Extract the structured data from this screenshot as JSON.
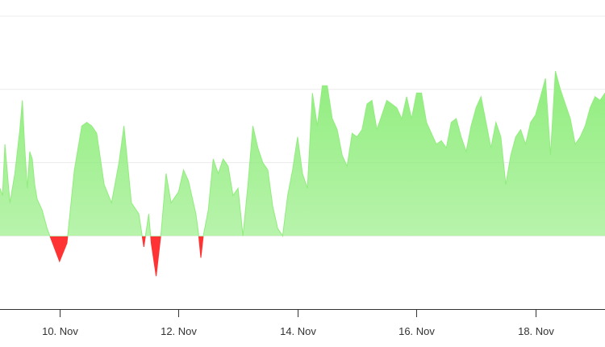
{
  "chart_data": {
    "type": "area",
    "title": "",
    "xlabel": "",
    "ylabel": "",
    "x_tick_labels": [
      "10. Nov",
      "12. Nov",
      "14. Nov",
      "16. Nov",
      "18. Nov"
    ],
    "x_tick_dates": [
      "2024-11-10",
      "2024-11-12",
      "2024-11-14",
      "2024-11-16",
      "2024-11-18"
    ],
    "x_range": [
      "2024-11-09T00:00",
      "2024-11-19T04:00"
    ],
    "y_range": [
      -1,
      3
    ],
    "y_gridlines": [
      0,
      1,
      2,
      3
    ],
    "y_tick_labels_visible": false,
    "positive_color": "#90ed7d",
    "negative_color": "#ff3333",
    "series": [
      {
        "points": [
          [
            "2024-11-09T00:00",
            0.65
          ],
          [
            "2024-11-09T01:00",
            0.55
          ],
          [
            "2024-11-09T02:00",
            1.25
          ],
          [
            "2024-11-09T03:00",
            0.85
          ],
          [
            "2024-11-09T04:00",
            0.45
          ],
          [
            "2024-11-09T06:00",
            0.85
          ],
          [
            "2024-11-09T08:00",
            1.45
          ],
          [
            "2024-11-09T09:00",
            1.85
          ],
          [
            "2024-11-09T10:00",
            1.2
          ],
          [
            "2024-11-09T11:00",
            0.65
          ],
          [
            "2024-11-09T12:00",
            1.15
          ],
          [
            "2024-11-09T13:00",
            1.05
          ],
          [
            "2024-11-09T14:00",
            0.7
          ],
          [
            "2024-11-09T15:00",
            0.5
          ],
          [
            "2024-11-09T17:00",
            0.35
          ],
          [
            "2024-11-09T19:00",
            0.1
          ],
          [
            "2024-11-10T00:00",
            -0.35
          ],
          [
            "2024-11-10T03:00",
            -0.1
          ],
          [
            "2024-11-10T06:00",
            0.9
          ],
          [
            "2024-11-10T09:00",
            1.5
          ],
          [
            "2024-11-10T11:00",
            1.55
          ],
          [
            "2024-11-10T13:00",
            1.5
          ],
          [
            "2024-11-10T15:00",
            1.4
          ],
          [
            "2024-11-10T18:00",
            0.7
          ],
          [
            "2024-11-10T21:00",
            0.45
          ],
          [
            "2024-11-11T00:00",
            1.0
          ],
          [
            "2024-11-11T02:00",
            1.5
          ],
          [
            "2024-11-11T05:00",
            0.45
          ],
          [
            "2024-11-11T08:00",
            0.3
          ],
          [
            "2024-11-11T10:00",
            -0.15
          ],
          [
            "2024-11-11T12:00",
            0.3
          ],
          [
            "2024-11-11T13:00",
            -0.1
          ],
          [
            "2024-11-11T15:00",
            -0.55
          ],
          [
            "2024-11-11T17:00",
            0.05
          ],
          [
            "2024-11-11T19:00",
            0.85
          ],
          [
            "2024-11-11T21:00",
            0.45
          ],
          [
            "2024-11-12T00:00",
            0.6
          ],
          [
            "2024-11-12T02:00",
            0.9
          ],
          [
            "2024-11-12T04:00",
            0.75
          ],
          [
            "2024-11-12T05:00",
            0.6
          ],
          [
            "2024-11-12T07:00",
            0.3
          ],
          [
            "2024-11-12T08:00",
            0.05
          ],
          [
            "2024-11-12T09:00",
            -0.3
          ],
          [
            "2024-11-12T10:00",
            0.0
          ],
          [
            "2024-11-12T12:00",
            0.35
          ],
          [
            "2024-11-12T14:00",
            1.05
          ],
          [
            "2024-11-12T16:00",
            0.85
          ],
          [
            "2024-11-12T18:00",
            1.05
          ],
          [
            "2024-11-12T20:00",
            0.95
          ],
          [
            "2024-11-12T22:00",
            0.55
          ],
          [
            "2024-11-13T00:00",
            0.65
          ],
          [
            "2024-11-13T02:00",
            0.0
          ],
          [
            "2024-11-13T04:00",
            0.7
          ],
          [
            "2024-11-13T06:00",
            1.5
          ],
          [
            "2024-11-13T08:00",
            1.2
          ],
          [
            "2024-11-13T10:00",
            1.0
          ],
          [
            "2024-11-13T12:00",
            0.9
          ],
          [
            "2024-11-13T14:00",
            0.4
          ],
          [
            "2024-11-13T16:00",
            0.1
          ],
          [
            "2024-11-13T18:00",
            0.0
          ],
          [
            "2024-11-13T20:00",
            0.55
          ],
          [
            "2024-11-13T22:00",
            0.9
          ],
          [
            "2024-11-14T00:00",
            1.35
          ],
          [
            "2024-11-14T02:00",
            0.85
          ],
          [
            "2024-11-14T04:00",
            0.65
          ],
          [
            "2024-11-14T06:00",
            1.95
          ],
          [
            "2024-11-14T08:00",
            1.5
          ],
          [
            "2024-11-14T10:00",
            2.05
          ],
          [
            "2024-11-14T12:00",
            2.05
          ],
          [
            "2024-11-14T14:00",
            1.6
          ],
          [
            "2024-11-14T16:00",
            1.45
          ],
          [
            "2024-11-14T18:00",
            1.1
          ],
          [
            "2024-11-14T20:00",
            0.95
          ],
          [
            "2024-11-14T22:00",
            1.4
          ],
          [
            "2024-11-15T00:00",
            1.35
          ],
          [
            "2024-11-15T02:00",
            1.45
          ],
          [
            "2024-11-15T04:00",
            1.8
          ],
          [
            "2024-11-15T06:00",
            1.85
          ],
          [
            "2024-11-15T08:00",
            1.45
          ],
          [
            "2024-11-15T10:00",
            1.65
          ],
          [
            "2024-11-15T12:00",
            1.85
          ],
          [
            "2024-11-15T14:00",
            1.8
          ],
          [
            "2024-11-15T16:00",
            1.75
          ],
          [
            "2024-11-15T18:00",
            1.6
          ],
          [
            "2024-11-15T20:00",
            1.9
          ],
          [
            "2024-11-15T22:00",
            1.6
          ],
          [
            "2024-11-16T00:00",
            1.95
          ],
          [
            "2024-11-16T02:00",
            1.95
          ],
          [
            "2024-11-16T04:00",
            1.55
          ],
          [
            "2024-11-16T06:00",
            1.4
          ],
          [
            "2024-11-16T08:00",
            1.25
          ],
          [
            "2024-11-16T10:00",
            1.3
          ],
          [
            "2024-11-16T12:00",
            1.2
          ],
          [
            "2024-11-16T14:00",
            1.55
          ],
          [
            "2024-11-16T16:00",
            1.6
          ],
          [
            "2024-11-16T18:00",
            1.35
          ],
          [
            "2024-11-16T20:00",
            1.15
          ],
          [
            "2024-11-16T22:00",
            1.5
          ],
          [
            "2024-11-17T00:00",
            1.75
          ],
          [
            "2024-11-17T02:00",
            1.9
          ],
          [
            "2024-11-17T04:00",
            1.55
          ],
          [
            "2024-11-17T06:00",
            1.2
          ],
          [
            "2024-11-17T08:00",
            1.55
          ],
          [
            "2024-11-17T10:00",
            1.35
          ],
          [
            "2024-11-17T12:00",
            0.7
          ],
          [
            "2024-11-17T14:00",
            1.1
          ],
          [
            "2024-11-17T16:00",
            1.35
          ],
          [
            "2024-11-17T18:00",
            1.45
          ],
          [
            "2024-11-17T20:00",
            1.25
          ],
          [
            "2024-11-17T22:00",
            1.55
          ],
          [
            "2024-11-18T00:00",
            1.65
          ],
          [
            "2024-11-18T02:00",
            1.9
          ],
          [
            "2024-11-18T04:00",
            2.15
          ],
          [
            "2024-11-18T06:00",
            1.1
          ],
          [
            "2024-11-18T08:00",
            2.25
          ],
          [
            "2024-11-18T10:00",
            2.0
          ],
          [
            "2024-11-18T12:00",
            1.8
          ],
          [
            "2024-11-18T14:00",
            1.6
          ],
          [
            "2024-11-18T16:00",
            1.25
          ],
          [
            "2024-11-18T18:00",
            1.35
          ],
          [
            "2024-11-18T20:00",
            1.5
          ],
          [
            "2024-11-18T22:00",
            1.75
          ],
          [
            "2024-11-19T00:00",
            1.9
          ],
          [
            "2024-11-19T02:00",
            1.85
          ],
          [
            "2024-11-19T04:00",
            1.95
          ]
        ]
      }
    ]
  }
}
